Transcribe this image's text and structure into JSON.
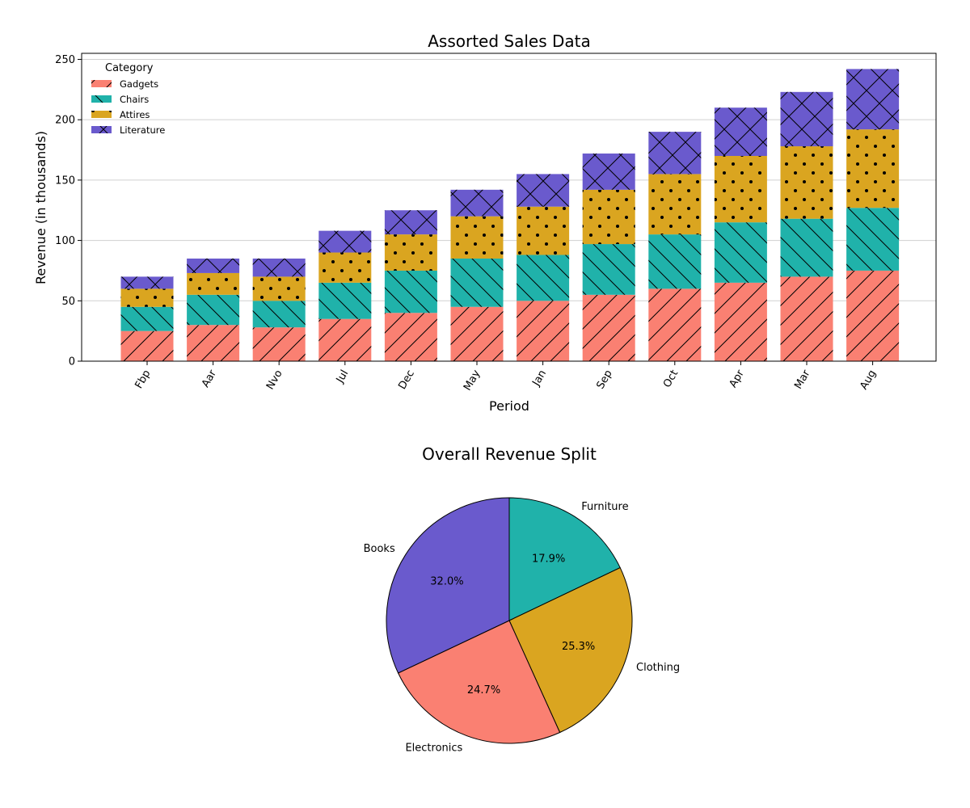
{
  "chart_data": [
    {
      "type": "bar",
      "stacked": true,
      "title": "Assorted Sales Data",
      "xlabel": "Period",
      "ylabel": "Revenue (in thousands)",
      "ylim": [
        0,
        255
      ],
      "yticks": [
        0,
        50,
        100,
        150,
        200,
        250
      ],
      "grid": "horizontal",
      "legend_title": "Category",
      "legend_position": "top-left",
      "categories": [
        "Fbp",
        "Aar",
        "Nvo",
        "Jul",
        "Dec",
        "May",
        "Jan",
        "Sep",
        "Oct",
        "Apr",
        "Mar",
        "Aug"
      ],
      "series": [
        {
          "name": "Gadgets",
          "color": "#FA8072",
          "hatch": "forward-diagonal",
          "values": [
            25,
            30,
            28,
            35,
            40,
            45,
            50,
            55,
            60,
            65,
            70,
            75
          ]
        },
        {
          "name": "Chairs",
          "color": "#20B2AA",
          "hatch": "back-diagonal",
          "values": [
            20,
            25,
            22,
            30,
            35,
            40,
            38,
            42,
            45,
            50,
            48,
            52
          ]
        },
        {
          "name": "Attires",
          "color": "#DAA520",
          "hatch": "dots",
          "values": [
            15,
            18,
            20,
            25,
            30,
            35,
            40,
            45,
            50,
            55,
            60,
            65
          ]
        },
        {
          "name": "Literature",
          "color": "#6A5ACD",
          "hatch": "crosshatch",
          "values": [
            10,
            12,
            15,
            18,
            20,
            22,
            27,
            30,
            35,
            40,
            45,
            50
          ]
        }
      ]
    },
    {
      "type": "pie",
      "title": "Overall Revenue Split",
      "start": "top",
      "direction": "clockwise",
      "slices": [
        {
          "label": "Furniture",
          "value": 17.9,
          "pct_label": "17.9%",
          "color": "#20B2AA"
        },
        {
          "label": "Clothing",
          "value": 25.3,
          "pct_label": "25.3%",
          "color": "#DAA520"
        },
        {
          "label": "Electronics",
          "value": 24.7,
          "pct_label": "24.7%",
          "color": "#FA8072"
        },
        {
          "label": "Books",
          "value": 32.0,
          "pct_label": "32.0%",
          "color": "#6A5ACD"
        }
      ]
    }
  ]
}
